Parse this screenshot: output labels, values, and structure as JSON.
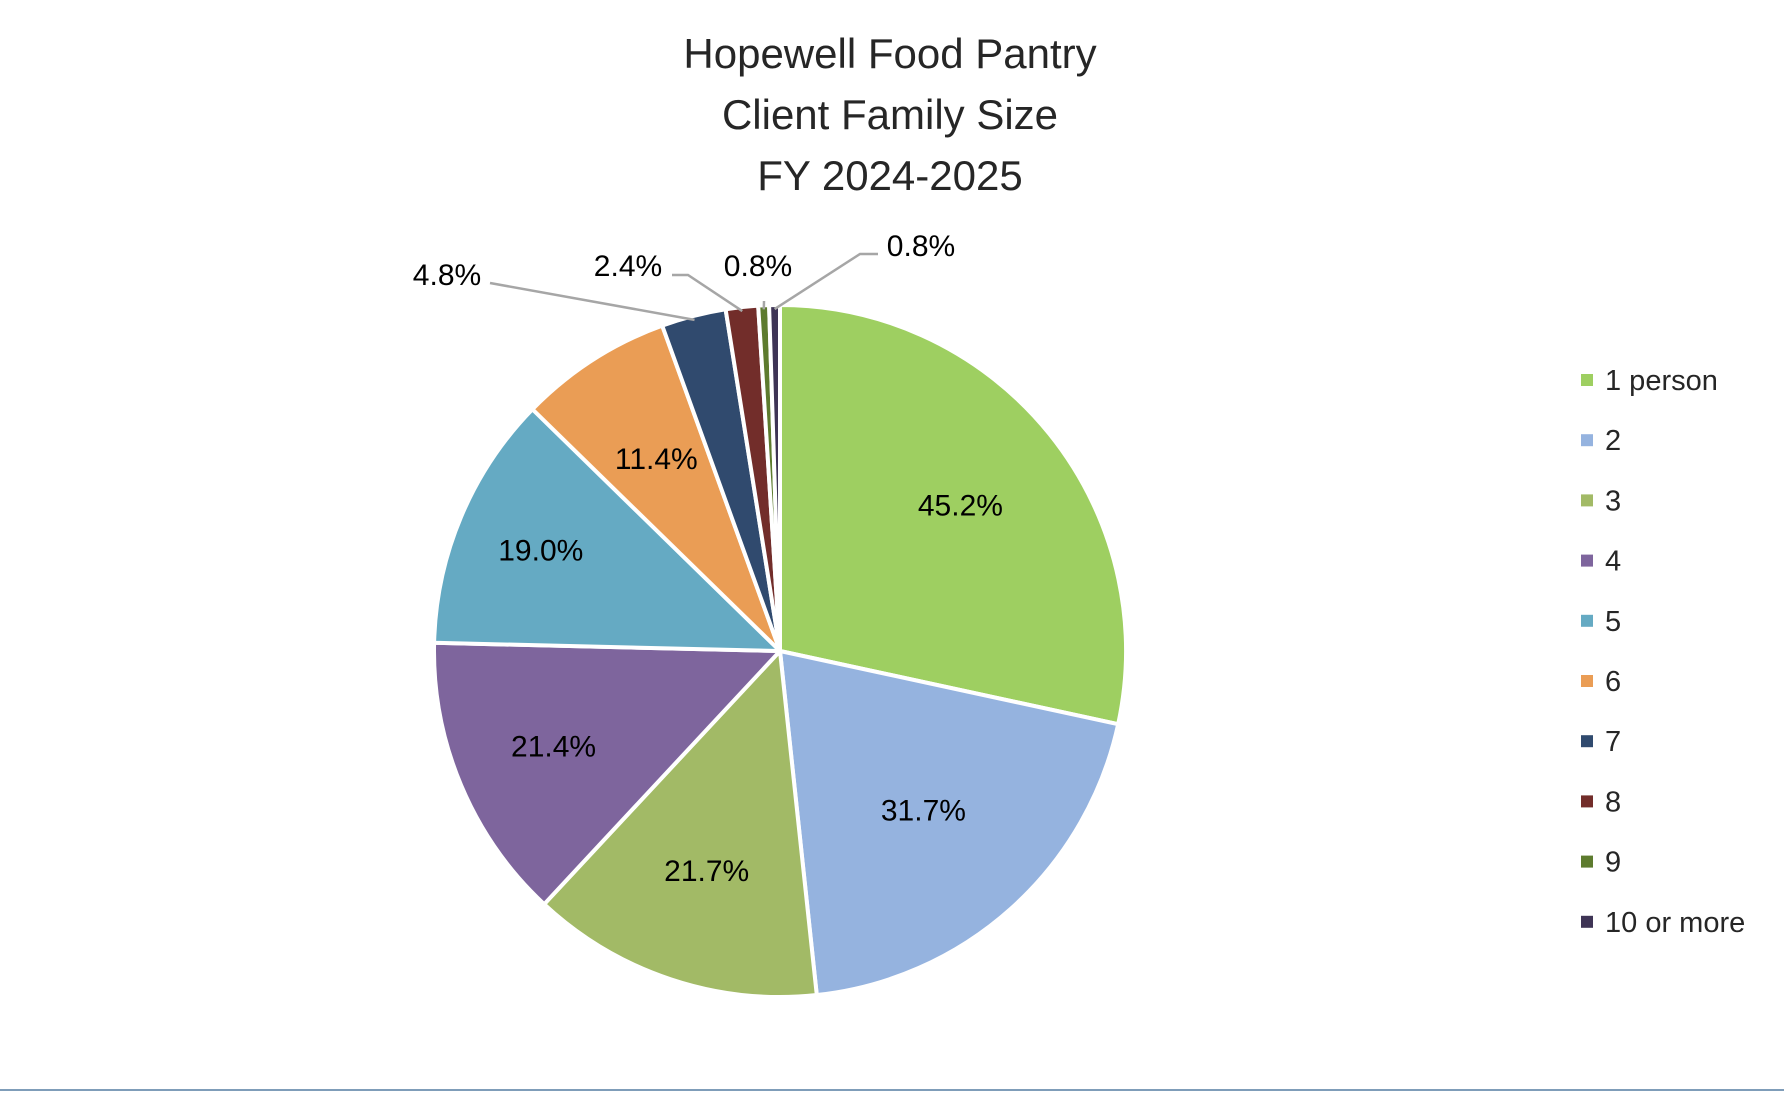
{
  "chart_data": {
    "type": "pie",
    "title": [
      "Hopewell Food Pantry",
      "Client Family Size",
      "FY 2024-2025"
    ],
    "start_angle": 0,
    "direction": "clockwise",
    "slices": [
      {
        "label": "1 person",
        "value": 45.2,
        "display": "45.2%",
        "color": "#9ecf61"
      },
      {
        "label": "2",
        "value": 31.7,
        "display": "31.7%",
        "color": "#95b3df"
      },
      {
        "label": "3",
        "value": 21.7,
        "display": "21.7%",
        "color": "#a2ba66"
      },
      {
        "label": "4",
        "value": 21.4,
        "display": "21.4%",
        "color": "#7e659d"
      },
      {
        "label": "5",
        "value": 19.0,
        "display": "19.0%",
        "color": "#65aac3"
      },
      {
        "label": "6",
        "value": 11.4,
        "display": "11.4%",
        "color": "#ea9d55"
      },
      {
        "label": "7",
        "value": 4.8,
        "display": "4.8%",
        "color": "#304a6e"
      },
      {
        "label": "8",
        "value": 2.4,
        "display": "2.4%",
        "color": "#722d2a"
      },
      {
        "label": "9",
        "value": 0.8,
        "display": "0.8%",
        "color": "#5d7b2e"
      },
      {
        "label": "10 or more",
        "value": 0.8,
        "display": "0.8%",
        "color": "#3e3455"
      }
    ],
    "legend_position": "right",
    "leader_line_color": "#a6a6a6"
  }
}
